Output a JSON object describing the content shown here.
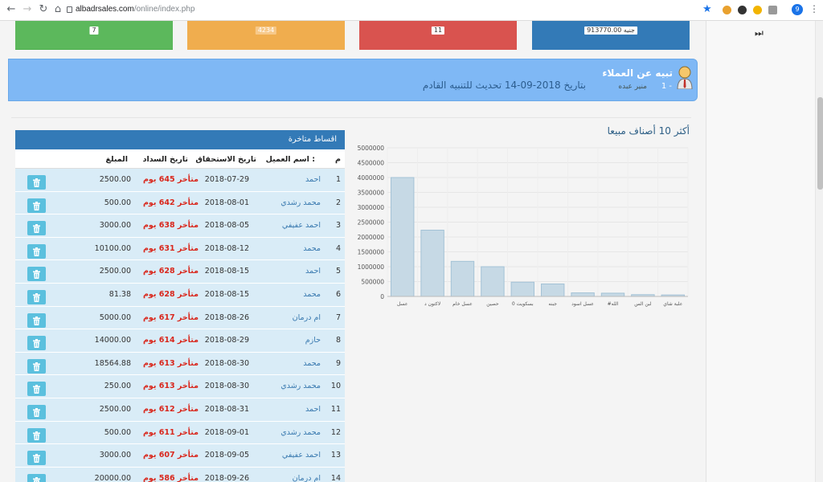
{
  "browser": {
    "url_host": "albadrsales.com",
    "url_path": "/online/index.php",
    "profile_initial": "9"
  },
  "rail": {
    "button_label": "⏭"
  },
  "stat_cards": [
    {
      "value": "7",
      "color": "#5cb85c"
    },
    {
      "value": "4234",
      "color": "#f0ad4e"
    },
    {
      "value": "11",
      "color": "#d9534f"
    },
    {
      "value": "913770.00 جنيه",
      "color": "#337ab7"
    }
  ],
  "alert": {
    "title": "تبيه عن العملاء",
    "number": "1 -",
    "name": "منير عبده",
    "message": "بتاريخ 2018-09-14 تحديث للتنبيه القادم"
  },
  "chart_section": {
    "title": "أكثر 10 أصناف مبيعا"
  },
  "chart_data": {
    "type": "bar",
    "categories": [
      "عسل",
      "لاكتون د",
      "عسل خام",
      "حصين",
      "بسكويت 0",
      "جبنه",
      "عسل اسود",
      "#الله",
      "لبن الس",
      "علبة شاي"
    ],
    "values": [
      4000000,
      2230000,
      1180000,
      1000000,
      480000,
      420000,
      120000,
      110000,
      60000,
      50000
    ],
    "ylim": [
      0,
      5000000
    ],
    "yticks": [
      "0",
      "500000",
      "1000000",
      "1500000",
      "2000000",
      "2500000",
      "3000000",
      "3500000",
      "4000000",
      "4500000",
      "5000000"
    ],
    "bar_fill": "#c6d9e5",
    "bar_stroke": "#a3c2d6",
    "grid": true
  },
  "table": {
    "title": "اقساط متاخرة",
    "headers": {
      "m": "م",
      "name": "اسم العميل :",
      "due_date": "تاريخ الاستحقاق",
      "pay_date": "تاريخ السداد",
      "amount": "المبلغ"
    },
    "rows": [
      {
        "m": "1",
        "name": "احمد",
        "date": "2018-07-29",
        "late": "متأخر 645 يوم",
        "amount": "2500.00"
      },
      {
        "m": "2",
        "name": "محمد رشدي",
        "date": "2018-08-01",
        "late": "متأخر 642 يوم",
        "amount": "500.00"
      },
      {
        "m": "3",
        "name": "احمد عفيفي",
        "date": "2018-08-05",
        "late": "متأخر 638 يوم",
        "amount": "3000.00"
      },
      {
        "m": "4",
        "name": "محمد",
        "date": "2018-08-12",
        "late": "متأخر 631 يوم",
        "amount": "10100.00"
      },
      {
        "m": "5",
        "name": "احمد",
        "date": "2018-08-15",
        "late": "متأخر 628 يوم",
        "amount": "2500.00"
      },
      {
        "m": "6",
        "name": "محمد",
        "date": "2018-08-15",
        "late": "متأخر 628 يوم",
        "amount": "81.38"
      },
      {
        "m": "7",
        "name": "ام درمان",
        "date": "2018-08-26",
        "late": "متأخر 617 يوم",
        "amount": "5000.00"
      },
      {
        "m": "8",
        "name": "حازم",
        "date": "2018-08-29",
        "late": "متأخر 614 يوم",
        "amount": "14000.00"
      },
      {
        "m": "9",
        "name": "محمد",
        "date": "2018-08-30",
        "late": "متأخر 613 يوم",
        "amount": "18564.88"
      },
      {
        "m": "10",
        "name": "محمد رشدي",
        "date": "2018-08-30",
        "late": "متأخر 613 يوم",
        "amount": "250.00"
      },
      {
        "m": "11",
        "name": "احمد",
        "date": "2018-08-31",
        "late": "متأخر 612 يوم",
        "amount": "2500.00"
      },
      {
        "m": "12",
        "name": "محمد رشدي",
        "date": "2018-09-01",
        "late": "متأخر 611 يوم",
        "amount": "500.00"
      },
      {
        "m": "13",
        "name": "احمد عفيفي",
        "date": "2018-09-05",
        "late": "متأخر 607 يوم",
        "amount": "3000.00"
      },
      {
        "m": "14",
        "name": "ام درمان",
        "date": "2018-09-26",
        "late": "متأخر 586 يوم",
        "amount": "20000.00"
      }
    ]
  }
}
